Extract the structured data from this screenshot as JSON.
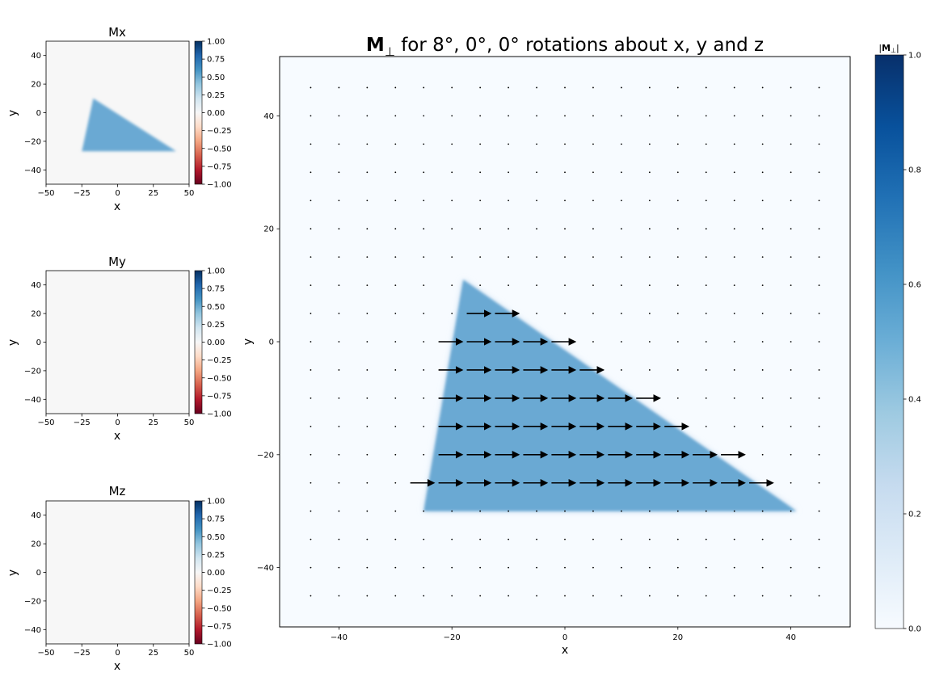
{
  "chart_data": [
    {
      "type": "heatmap",
      "title": "Mx",
      "xlabel": "x",
      "ylabel": "y",
      "xlim": [
        -50,
        50
      ],
      "ylim": [
        -50,
        50
      ],
      "xticks": [
        -50,
        -25,
        0,
        25,
        50
      ],
      "yticks": [
        -40,
        -20,
        0,
        20,
        40
      ],
      "colorbar": {
        "cmap": "RdBu",
        "range": [
          -1,
          1
        ],
        "ticks": [
          "-1.00",
          "-0.75",
          "-0.50",
          "-0.25",
          "0.00",
          "0.25",
          "0.50",
          "0.75",
          "1.00"
        ]
      },
      "background_value": 0.0,
      "region": {
        "shape": "triangle",
        "vertices": [
          [
            -25,
            -27
          ],
          [
            -17,
            10
          ],
          [
            41,
            -27
          ]
        ],
        "value": 0.55
      }
    },
    {
      "type": "heatmap",
      "title": "My",
      "xlabel": "x",
      "ylabel": "y",
      "xlim": [
        -50,
        50
      ],
      "ylim": [
        -50,
        50
      ],
      "xticks": [
        -50,
        -25,
        0,
        25,
        50
      ],
      "yticks": [
        -40,
        -20,
        0,
        20,
        40
      ],
      "colorbar": {
        "cmap": "RdBu",
        "range": [
          -1,
          1
        ],
        "ticks": [
          "-1.00",
          "-0.75",
          "-0.50",
          "-0.25",
          "0.00",
          "0.25",
          "0.50",
          "0.75",
          "1.00"
        ]
      },
      "background_value": 0.0
    },
    {
      "type": "heatmap",
      "title": "Mz",
      "xlabel": "x",
      "ylabel": "y",
      "xlim": [
        -50,
        50
      ],
      "ylim": [
        -50,
        50
      ],
      "xticks": [
        -50,
        -25,
        0,
        25,
        50
      ],
      "yticks": [
        -40,
        -20,
        0,
        20,
        40
      ],
      "colorbar": {
        "cmap": "RdBu",
        "range": [
          -1,
          1
        ],
        "ticks": [
          "-1.00",
          "-0.75",
          "-0.50",
          "-0.25",
          "0.00",
          "0.25",
          "0.50",
          "0.75",
          "1.00"
        ]
      },
      "background_value": 0.0
    },
    {
      "type": "heatmap",
      "title_bold": "M",
      "title_sub": "⊥",
      "title_rest": " for 8°, 0°, 0° rotations about x, y and z",
      "xlabel": "x",
      "ylabel": "y",
      "xlim": [
        -50.5,
        50.5
      ],
      "ylim": [
        -50.5,
        50.5
      ],
      "xticks": [
        -40,
        -20,
        0,
        20,
        40
      ],
      "yticks": [
        -40,
        -20,
        0,
        20,
        40
      ],
      "colorbar": {
        "label_bold": "M",
        "label_sub": "⊥",
        "cmap": "Blues",
        "range": [
          0,
          1
        ],
        "ticks": [
          "0.0",
          "0.2",
          "0.4",
          "0.6",
          "0.8",
          "1.0"
        ]
      },
      "background_value": 0.0,
      "region": {
        "shape": "triangle",
        "vertices": [
          [
            -25,
            -30
          ],
          [
            -18,
            11
          ],
          [
            41,
            -30
          ]
        ],
        "value": 0.55
      },
      "quiver": {
        "grid_start": -45,
        "grid_step": 5,
        "grid_count": 19,
        "direction": [
          1,
          0
        ],
        "arrow_rows": [
          {
            "y": 5,
            "x": [
              -15,
              -10
            ]
          },
          {
            "y": 0,
            "x": [
              -20,
              -15,
              -10,
              -5,
              0
            ]
          },
          {
            "y": -5,
            "x": [
              -20,
              -15,
              -10,
              -5,
              0,
              5
            ]
          },
          {
            "y": -10,
            "x": [
              -20,
              -15,
              -10,
              -5,
              0,
              5,
              10,
              15
            ]
          },
          {
            "y": -15,
            "x": [
              -20,
              -15,
              -10,
              -5,
              0,
              5,
              10,
              15,
              20
            ]
          },
          {
            "y": -20,
            "x": [
              -20,
              -15,
              -10,
              -5,
              0,
              5,
              10,
              15,
              20,
              25,
              30
            ]
          },
          {
            "y": -25,
            "x": [
              -25,
              -20,
              -15,
              -10,
              -5,
              0,
              5,
              10,
              15,
              20,
              25,
              30,
              35
            ]
          }
        ]
      }
    }
  ]
}
